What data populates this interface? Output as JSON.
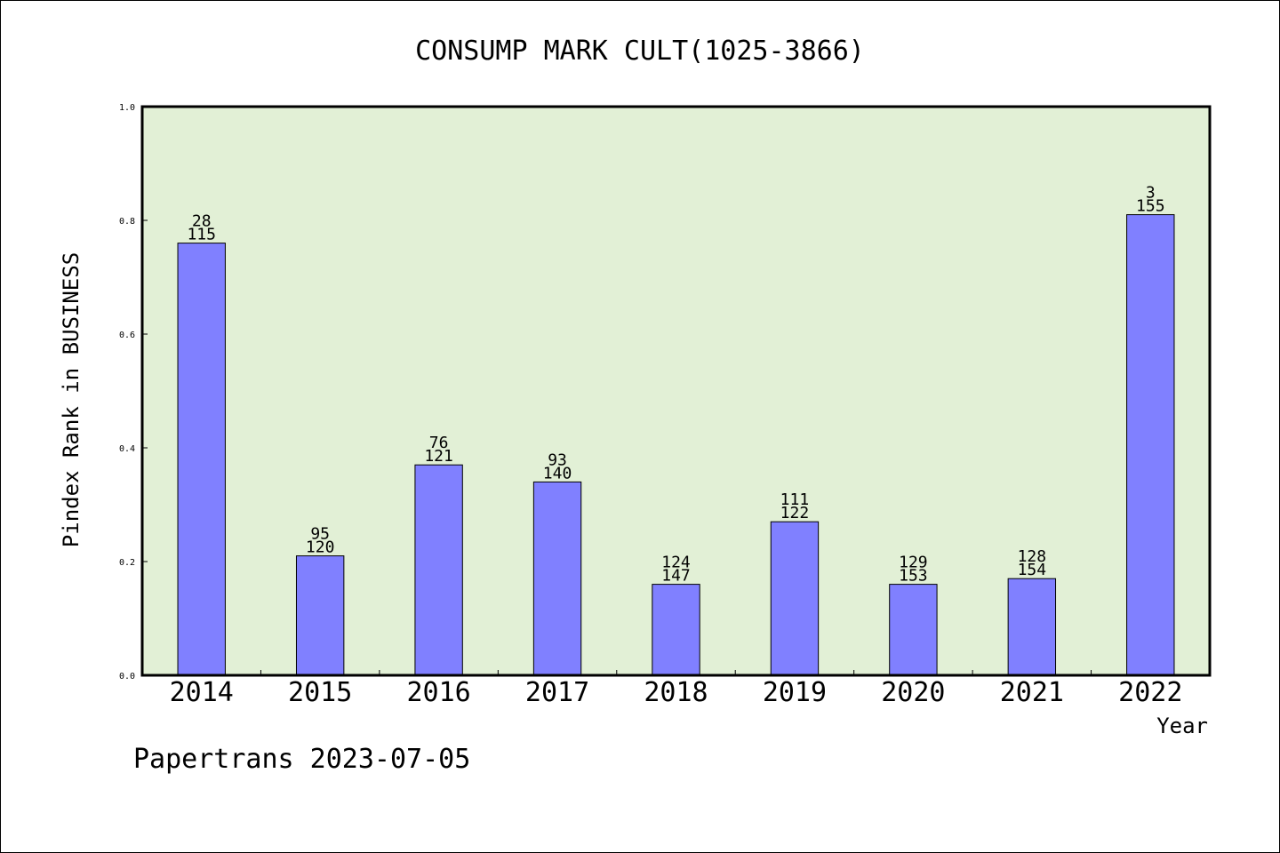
{
  "chart_data": {
    "type": "bar",
    "title": "CONSUMP MARK CULT(1025-3866)",
    "xlabel": "Year",
    "ylabel": "Pindex Rank in BUSINESS",
    "categories": [
      "2014",
      "2015",
      "2016",
      "2017",
      "2018",
      "2019",
      "2020",
      "2021",
      "2022"
    ],
    "values": [
      0.76,
      0.21,
      0.37,
      0.34,
      0.16,
      0.27,
      0.16,
      0.17,
      0.81
    ],
    "bar_labels_top": [
      "28",
      "95",
      "76",
      "93",
      "124",
      "111",
      "129",
      "128",
      "3"
    ],
    "bar_labels_bottom": [
      "115",
      "120",
      "121",
      "140",
      "147",
      "122",
      "153",
      "154",
      "155"
    ],
    "ylim": [
      0,
      1.0
    ],
    "yticks": [
      "0.0",
      "0.2",
      "0.4",
      "0.6",
      "0.8",
      "1.0"
    ],
    "grid": false,
    "colors": {
      "bar": "#8080ff",
      "plot_background": "#e2f0d6"
    }
  },
  "footer": {
    "text": "Papertrans 2023-07-05"
  }
}
